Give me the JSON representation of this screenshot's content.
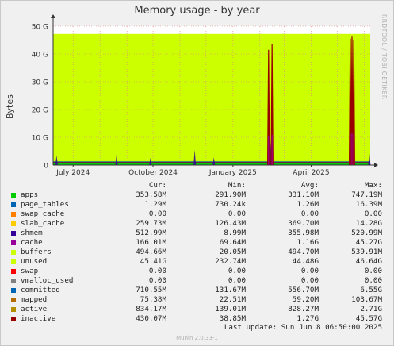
{
  "title": "Memory usage - by year",
  "side_credit": "RRDTOOL / TOBI OETIKER",
  "footer": "Munin 2.0.33-1",
  "last_update": "Last update:  Sun Jun  8 06:50:00 2025",
  "legend_headers": {
    "cur": "Cur:",
    "min": "Min:",
    "avg": "Avg:",
    "max": "Max:"
  },
  "legend": [
    {
      "name": "apps",
      "color": "#00cc00",
      "cur": "353.58M",
      "min": "291.90M",
      "avg": "331.10M",
      "max": "747.19M"
    },
    {
      "name": "page_tables",
      "color": "#0066b3",
      "cur": "1.29M",
      "min": "730.24k",
      "avg": "1.26M",
      "max": "16.39M"
    },
    {
      "name": "swap_cache",
      "color": "#ff8000",
      "cur": "0.00",
      "min": "0.00",
      "avg": "0.00",
      "max": "0.00"
    },
    {
      "name": "slab_cache",
      "color": "#ffcc00",
      "cur": "259.73M",
      "min": "126.43M",
      "avg": "369.70M",
      "max": "14.28G"
    },
    {
      "name": "shmem",
      "color": "#330099",
      "cur": "512.99M",
      "min": "8.99M",
      "avg": "355.98M",
      "max": "520.99M"
    },
    {
      "name": "cache",
      "color": "#990099",
      "cur": "166.01M",
      "min": "69.64M",
      "avg": "1.16G",
      "max": "45.27G"
    },
    {
      "name": "buffers",
      "color": "#ccff00",
      "cur": "494.66M",
      "min": "20.05M",
      "avg": "494.70M",
      "max": "539.91M"
    },
    {
      "name": "unused",
      "color": "#ccff00",
      "cur": "45.41G",
      "min": "232.74M",
      "avg": "44.48G",
      "max": "46.64G"
    },
    {
      "name": "swap",
      "color": "#ff0000",
      "cur": "0.00",
      "min": "0.00",
      "avg": "0.00",
      "max": "0.00"
    },
    {
      "name": "vmalloc_used",
      "color": "#808080",
      "cur": "0.00",
      "min": "0.00",
      "avg": "0.00",
      "max": "0.00"
    },
    {
      "name": "committed",
      "color": "#0066b3",
      "cur": "710.55M",
      "min": "131.67M",
      "avg": "556.70M",
      "max": "6.55G"
    },
    {
      "name": "mapped",
      "color": "#b36b00",
      "cur": "75.38M",
      "min": "22.51M",
      "avg": "59.20M",
      "max": "103.67M"
    },
    {
      "name": "active",
      "color": "#b38f00",
      "cur": "834.17M",
      "min": "139.01M",
      "avg": "828.27M",
      "max": "2.71G"
    },
    {
      "name": "inactive",
      "color": "#990000",
      "cur": "430.07M",
      "min": "38.85M",
      "avg": "1.27G",
      "max": "45.57G"
    }
  ],
  "chart_data": {
    "type": "area",
    "title": "Memory usage - by year",
    "ylabel": "Bytes",
    "ylim": [
      0,
      50
    ],
    "yunit": "G",
    "yticks": [
      {
        "value": 0,
        "label": "0"
      },
      {
        "value": 10,
        "label": "10 G"
      },
      {
        "value": 20,
        "label": "20 G"
      },
      {
        "value": 30,
        "label": "30 G"
      },
      {
        "value": 40,
        "label": "40 G"
      },
      {
        "value": 50,
        "label": "50 G"
      }
    ],
    "xrange": [
      "2024-06-08",
      "2025-06-08"
    ],
    "xticks": [
      {
        "date": "2024-07-01",
        "label": "July 2024"
      },
      {
        "date": "2024-10-01",
        "label": "October 2024"
      },
      {
        "date": "2025-01-01",
        "label": "January 2025"
      },
      {
        "date": "2025-04-01",
        "label": "April 2025"
      }
    ],
    "grid": true,
    "total_memory_gb": 47.2,
    "background_fill_series": "unused",
    "baseline_gb": 1.3,
    "spikes": [
      {
        "date": "2025-02-11",
        "value": 41.5,
        "series": "inactive"
      },
      {
        "date": "2025-02-15",
        "value": 43.5,
        "series": "inactive"
      },
      {
        "date": "2025-05-16",
        "value": 45.5,
        "series": "inactive"
      },
      {
        "date": "2025-05-18",
        "value": 46.5,
        "series": "inactive"
      },
      {
        "date": "2025-05-20",
        "value": 45.0,
        "series": "inactive"
      }
    ],
    "small_bumps": [
      {
        "date": "2024-06-12",
        "value": 3.5
      },
      {
        "date": "2024-08-20",
        "value": 3.8
      },
      {
        "date": "2024-09-28",
        "value": 2.6
      },
      {
        "date": "2024-11-18",
        "value": 5.5
      },
      {
        "date": "2024-12-10",
        "value": 2.8
      },
      {
        "date": "2025-02-13",
        "value": 9.0
      },
      {
        "date": "2025-05-17",
        "value": 12.5
      },
      {
        "date": "2025-06-07",
        "value": 4.5
      }
    ]
  }
}
